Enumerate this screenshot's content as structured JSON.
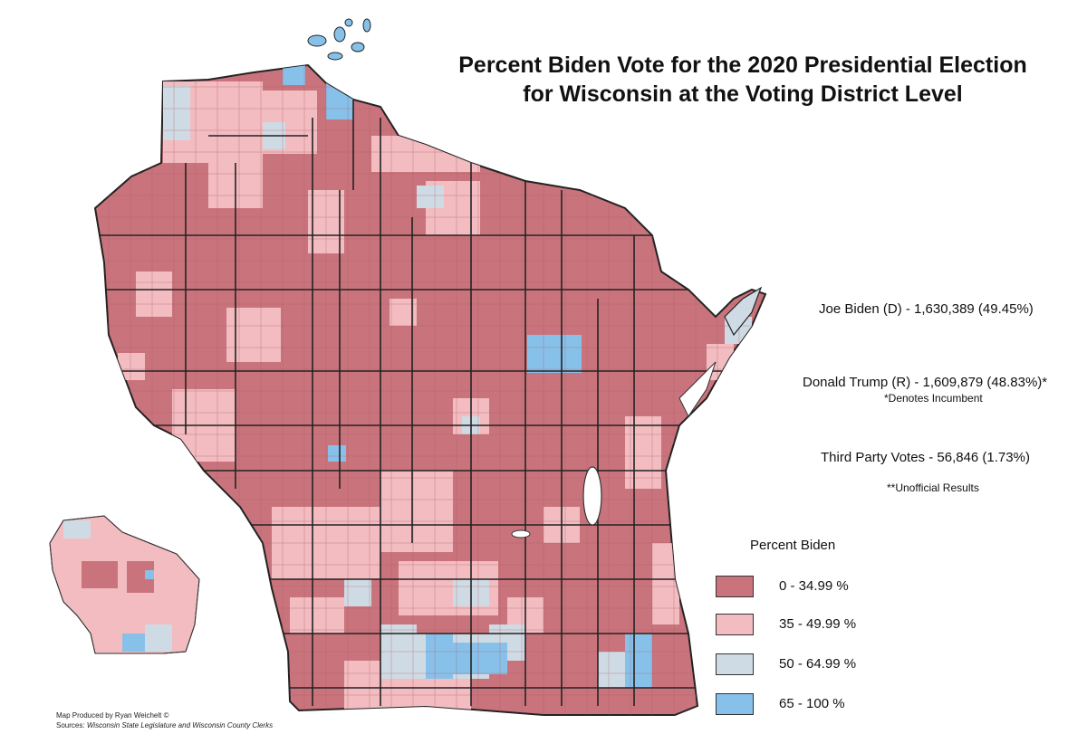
{
  "title": {
    "line1": "Percent Biden Vote for the 2020 Presidential Election",
    "line2": "for Wisconsin at the Voting District Level"
  },
  "results": {
    "biden": "Joe Biden (D) - 1,630,389 (49.45%)",
    "trump": "Donald Trump (R) - 1,609,879 (48.83%)*",
    "incumbent_note": "*Denotes Incumbent",
    "third_party": "Third Party Votes - 56,846 (1.73%)",
    "unofficial_note": "**Unofficial Results"
  },
  "legend": {
    "title": "Percent Biden",
    "items": [
      {
        "label": "0 - 34.99 %",
        "color": "#c9747c"
      },
      {
        "label": "35 - 49.99 %",
        "color": "#f2bcc0"
      },
      {
        "label": "50 - 64.99 %",
        "color": "#cfdbe4"
      },
      {
        "label": "65 - 100 %",
        "color": "#87c1ea"
      }
    ]
  },
  "credits": {
    "produced_by": "Map Produced by Ryan Weichelt ©",
    "sources_label": "Sources:",
    "sources": "Wisconsin State Legislature and Wisconsin County Clerks"
  },
  "colors": {
    "county_border": "#222222",
    "district_line": "#b05a63",
    "water": "#ffffff"
  }
}
